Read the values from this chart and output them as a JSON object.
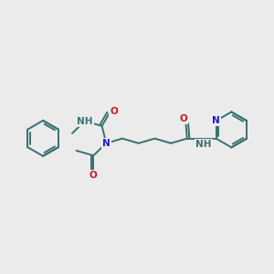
{
  "background_color": "#ebebeb",
  "bond_color": "#3a7070",
  "bond_width": 1.4,
  "N_color": "#1a1acc",
  "O_color": "#cc1a1a",
  "H_color": "#3a7070",
  "font_size": 7.5,
  "figsize": [
    3.0,
    3.0
  ],
  "dpi": 100,
  "xlim": [
    0.3,
    10.7
  ],
  "ylim": [
    2.8,
    8.2
  ]
}
